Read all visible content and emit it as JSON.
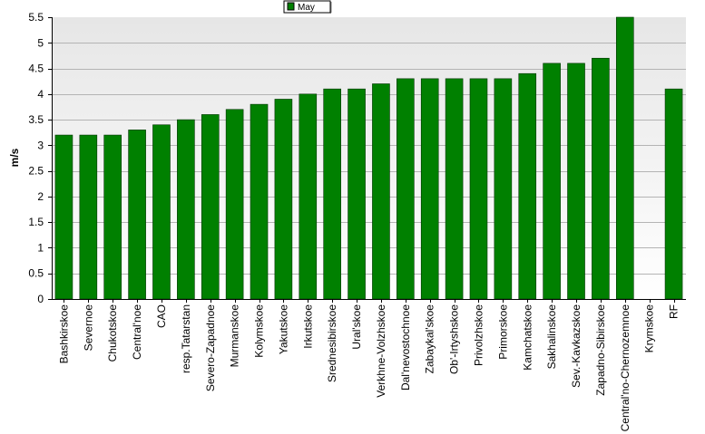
{
  "chart_data": {
    "type": "bar",
    "title": "",
    "xlabel": "",
    "ylabel": "m/s",
    "ylim": [
      0,
      5.5
    ],
    "yticks": [
      0,
      0.5,
      1,
      1.5,
      2,
      2.5,
      3,
      3.5,
      4,
      4.5,
      5,
      5.5
    ],
    "ytick_labels": [
      "0",
      "0.5",
      "1",
      "1.5",
      "2",
      "2.5",
      "3",
      "3.5",
      "4",
      "4.5",
      "5",
      "5.5"
    ],
    "grid": true,
    "legend_position": "top-center",
    "categories": [
      "Bashkirskoe",
      "Severnoe",
      "Chukotskoe",
      "Central'noe",
      "CAO",
      "resp.Tatarstan",
      "Severo-Zapadnoe",
      "Murmanskoe",
      "Kolymskoe",
      "Yakutskoe",
      "Irkutskoe",
      "Srednesibirskoe",
      "Ural'skoe",
      "Verkhne-Volzhskoe",
      "Dal'nevostochnoe",
      "Zabaykal'skoe",
      "Ob'-Irtyshskoe",
      "Privolzhskoe",
      "Primorskoe",
      "Kamchatskoe",
      "Sakhalinskoe",
      "Sev.-Kavkazskoe",
      "Zapadno-Sibirskoe",
      "Central'no-Chernozemnoe",
      "Krymskoe",
      "RF"
    ],
    "series": [
      {
        "name": "May",
        "color": "#008000",
        "values": [
          3.2,
          3.2,
          3.2,
          3.3,
          3.4,
          3.5,
          3.6,
          3.7,
          3.8,
          3.9,
          4.0,
          4.1,
          4.1,
          4.2,
          4.3,
          4.3,
          4.3,
          4.3,
          4.3,
          4.4,
          4.6,
          4.6,
          4.7,
          5.5,
          null,
          4.1
        ]
      }
    ],
    "colors": {
      "bar": "#008000",
      "bar_edge": "#003300",
      "plot_bg_top": "#e6e6e6",
      "plot_bg_bottom": "#ffffff",
      "grid": "#b4b4b4"
    }
  }
}
